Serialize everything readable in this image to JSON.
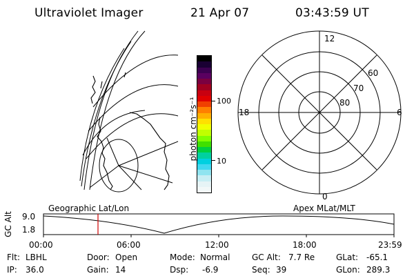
{
  "header": {
    "instrument": "Ultraviolet Imager",
    "date": "21 Apr 07",
    "time": "03:43:59 UT"
  },
  "colorbar": {
    "unit_label": "photon cm⁻²s⁻¹",
    "tick_100": "100",
    "tick_10": "10",
    "colors": [
      "#000000",
      "#1a0033",
      "#3c0050",
      "#5a0060",
      "#7a0040",
      "#a00020",
      "#c80010",
      "#e00000",
      "#f04000",
      "#ff8000",
      "#ffb000",
      "#ffe000",
      "#f0ff00",
      "#c0ff00",
      "#80ff00",
      "#40e000",
      "#00d040",
      "#00d0a0",
      "#00d0e0",
      "#40d8f0",
      "#90e4f0",
      "#c8eef4",
      "#e6f4f6",
      "#f2f8f8"
    ]
  },
  "polar": {
    "label_12": "12",
    "label_18": "18",
    "label_6": "6",
    "label_0": "0",
    "lat_60": "60",
    "lat_70": "70",
    "lat_80": "80"
  },
  "timeline": {
    "left_caption": "Geographic Lat/Lon",
    "right_caption": "Apex MLat/MLT",
    "axis_label": "GC Alt",
    "y_max": "9.0",
    "y_min": "1.8",
    "ticks": [
      "00:00",
      "06:00",
      "12:00",
      "18:00",
      "23:59"
    ],
    "current_time_hours": 3.733
  },
  "info": {
    "filter_label": "Flt:",
    "filter_value": "LBHL",
    "ip_label": "IP:",
    "ip_value": "36.0",
    "door_label": "Door:",
    "door_value": "Open",
    "gain_label": "Gain:",
    "gain_value": "14",
    "mode_label": "Mode:",
    "mode_value": "Normal",
    "dsp_label": "Dsp:",
    "dsp_value": "-6.9",
    "gcalt_label": "GC Alt:",
    "gcalt_value": "7.7 Re",
    "seq_label": "Seq:",
    "seq_value": "39",
    "glat_label": "GLat:",
    "glat_value": "-65.1",
    "glon_label": "GLon:",
    "glon_value": "289.3"
  }
}
